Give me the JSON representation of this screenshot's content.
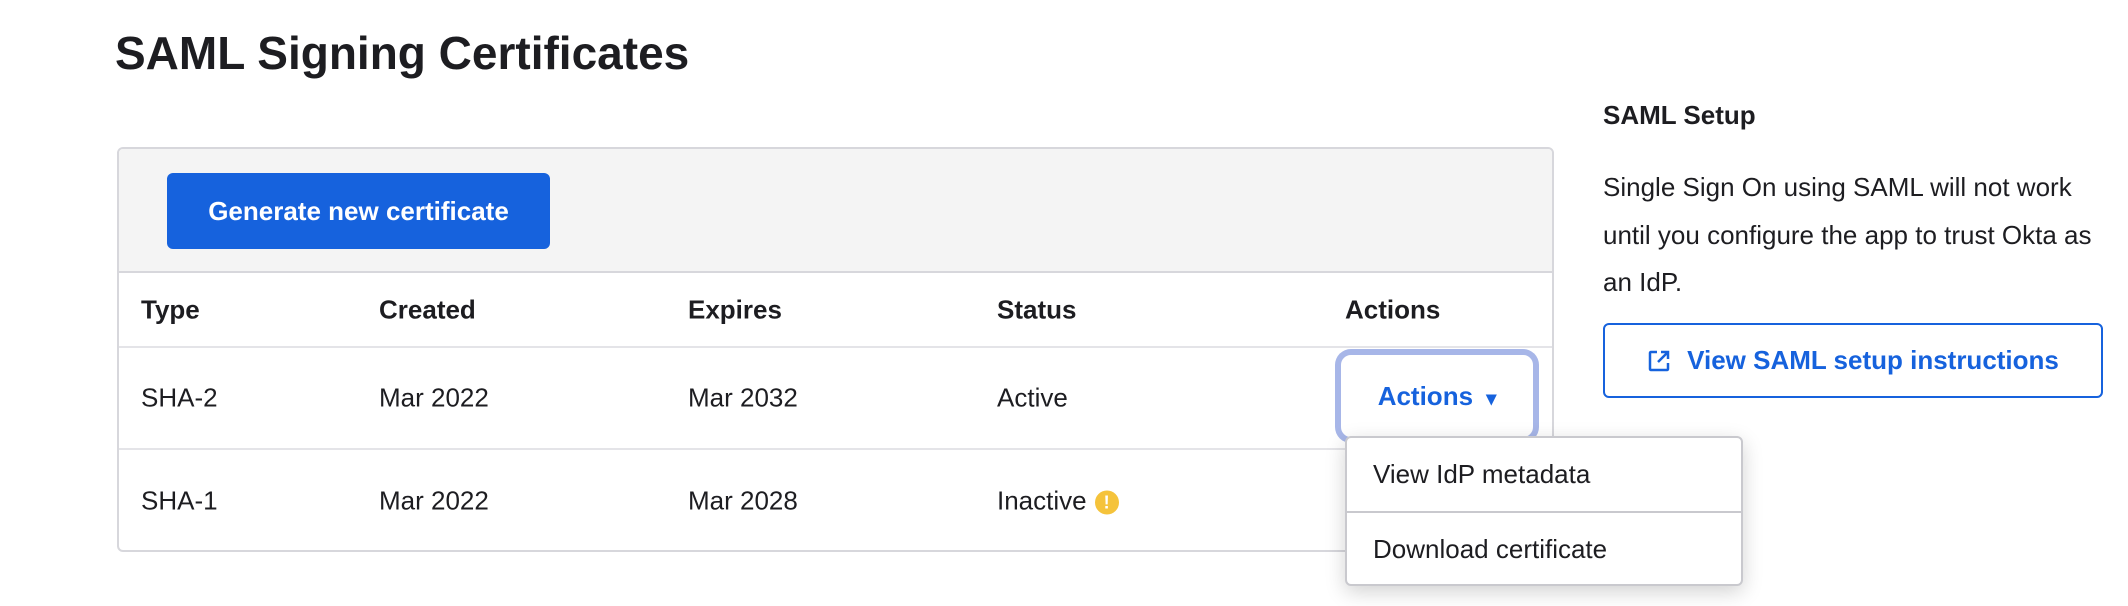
{
  "page_title": "SAML Signing Certificates",
  "generate_button": "Generate new certificate",
  "table": {
    "headers": [
      "Type",
      "Created",
      "Expires",
      "Status",
      "Actions"
    ],
    "rows": [
      {
        "type": "SHA-2",
        "created": "Mar 2022",
        "expires": "Mar 2032",
        "status": "Active",
        "action": "Actions"
      },
      {
        "type": "SHA-1",
        "created": "Mar 2022",
        "expires": "Mar 2028",
        "status": "Inactive",
        "status_icon": "warning-icon"
      }
    ]
  },
  "actions_menu": {
    "items": [
      "View IdP metadata",
      "Download certificate"
    ],
    "caret": "▾"
  },
  "sidebar": {
    "title": "SAML Setup",
    "text": "Single Sign On using SAML will not work until you configure the app to trust Okta as an IdP.",
    "button": "View SAML setup instructions",
    "button_icon": "external-link-icon"
  },
  "colors": {
    "accent": "#1662dd",
    "focus_ring": "#a7b6e8",
    "warning": "#f5c33b"
  }
}
